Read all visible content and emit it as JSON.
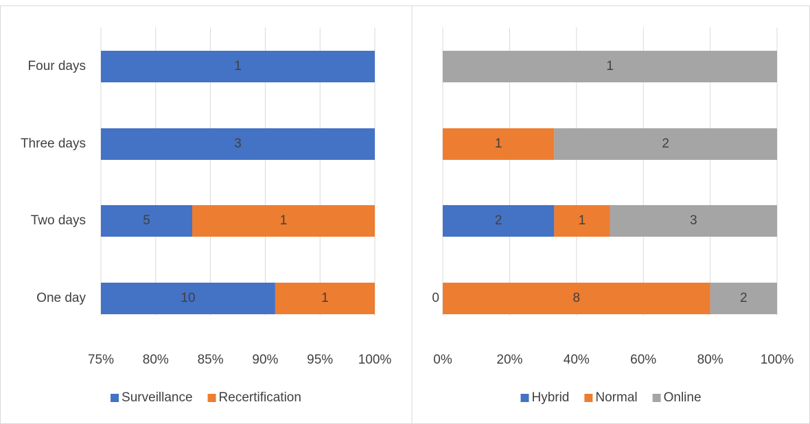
{
  "chart_data": [
    {
      "type": "bar",
      "orientation": "horizontal",
      "stacking": "percent",
      "categories": [
        "One day",
        "Two days",
        "Three days",
        "Four days"
      ],
      "series": [
        {
          "name": "Surveillance",
          "color": "#4472c4",
          "values": [
            10,
            5,
            3,
            1
          ]
        },
        {
          "name": "Recertification",
          "color": "#ed7d31",
          "values": [
            1,
            1,
            null,
            null
          ]
        }
      ],
      "xlim": [
        75,
        100
      ],
      "xticks": [
        {
          "value": 75,
          "label": "75%"
        },
        {
          "value": 80,
          "label": "80%"
        },
        {
          "value": 85,
          "label": "85%"
        },
        {
          "value": 90,
          "label": "90%"
        },
        {
          "value": 95,
          "label": "95%"
        },
        {
          "value": 100,
          "label": "100%"
        }
      ],
      "grid": true,
      "legend": "bottom"
    },
    {
      "type": "bar",
      "orientation": "horizontal",
      "stacking": "percent",
      "categories": [
        "One day",
        "Two days",
        "Three days",
        "Four days"
      ],
      "series": [
        {
          "name": "Hybrid",
          "color": "#4472c4",
          "values": [
            0,
            2,
            null,
            null
          ]
        },
        {
          "name": "Normal",
          "color": "#ed7d31",
          "values": [
            8,
            1,
            1,
            null
          ]
        },
        {
          "name": "Online",
          "color": "#a5a5a5",
          "values": [
            2,
            3,
            2,
            1
          ]
        }
      ],
      "xlim": [
        0,
        100
      ],
      "xticks": [
        {
          "value": 0,
          "label": "0%"
        },
        {
          "value": 20,
          "label": "20%"
        },
        {
          "value": 40,
          "label": "40%"
        },
        {
          "value": 60,
          "label": "60%"
        },
        {
          "value": 80,
          "label": "80%"
        },
        {
          "value": 100,
          "label": "100%"
        }
      ],
      "grid": true,
      "legend": "bottom"
    }
  ]
}
